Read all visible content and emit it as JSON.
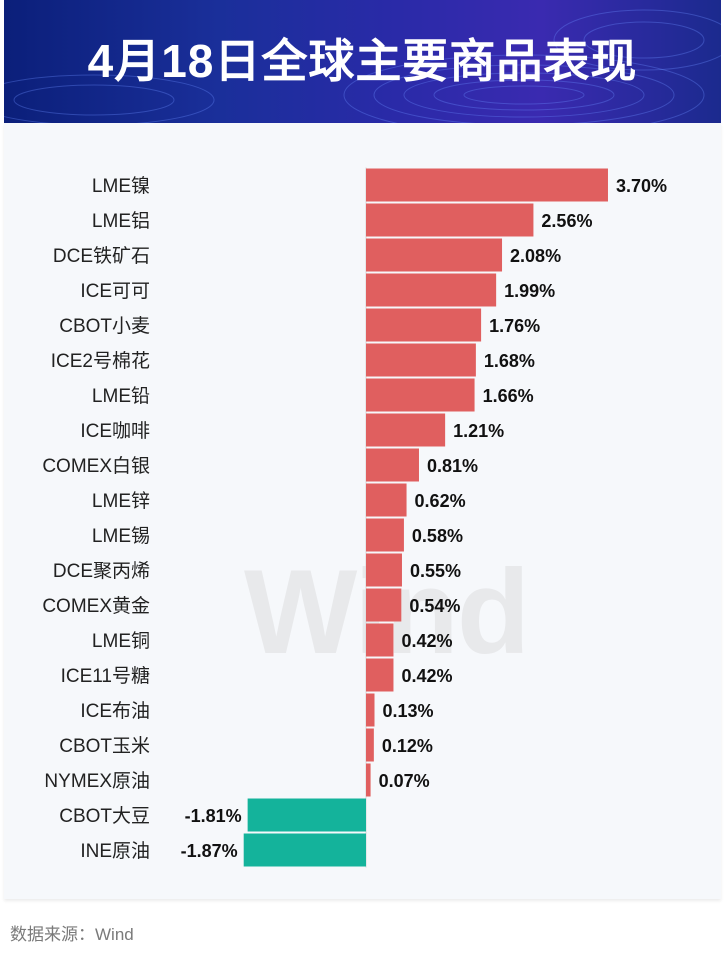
{
  "header": {
    "title": "4月18日全球主要商品表现"
  },
  "source": {
    "text": "数据来源：Wind"
  },
  "watermark": {
    "text": "Wind"
  },
  "colors": {
    "positive": "#e05f5f",
    "negative": "#14b39b",
    "header_bg": "#1a2f9a"
  },
  "chart_data": {
    "type": "bar",
    "orientation": "horizontal",
    "title": "4月18日全球主要商品表现",
    "unit": "%",
    "categories": [
      "LME镍",
      "LME铝",
      "DCE铁矿石",
      "ICE可可",
      "CBOT小麦",
      "ICE2号棉花",
      "LME铅",
      "ICE咖啡",
      "COMEX白银",
      "LME锌",
      "LME锡",
      "DCE聚丙烯",
      "COMEX黄金",
      "LME铜",
      "ICE11号糖",
      "ICE布油",
      "CBOT玉米",
      "NYMEX原油",
      "CBOT大豆",
      "INE原油"
    ],
    "values": [
      3.7,
      2.56,
      2.08,
      1.99,
      1.76,
      1.68,
      1.66,
      1.21,
      0.81,
      0.62,
      0.58,
      0.55,
      0.54,
      0.42,
      0.42,
      0.13,
      0.12,
      0.07,
      -1.81,
      -1.87
    ],
    "labels": [
      "3.70%",
      "2.56%",
      "2.08%",
      "1.99%",
      "1.76%",
      "1.68%",
      "1.66%",
      "1.21%",
      "0.81%",
      "0.62%",
      "0.58%",
      "0.55%",
      "0.54%",
      "0.42%",
      "0.42%",
      "0.13%",
      "0.12%",
      "0.07%",
      "-1.81%",
      "-1.87%"
    ]
  }
}
